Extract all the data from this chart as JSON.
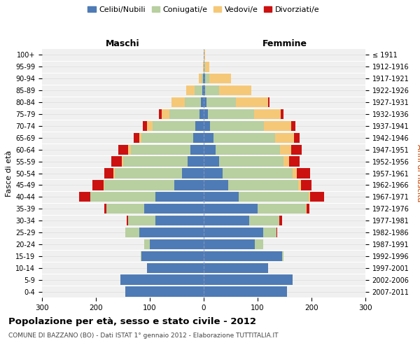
{
  "age_groups": [
    "0-4",
    "5-9",
    "10-14",
    "15-19",
    "20-24",
    "25-29",
    "30-34",
    "35-39",
    "40-44",
    "45-49",
    "50-54",
    "55-59",
    "60-64",
    "65-69",
    "70-74",
    "75-79",
    "80-84",
    "85-89",
    "90-94",
    "95-99",
    "100+"
  ],
  "birth_years": [
    "2007-2011",
    "2002-2006",
    "1997-2001",
    "1992-1996",
    "1987-1991",
    "1982-1986",
    "1977-1981",
    "1972-1976",
    "1967-1971",
    "1962-1966",
    "1957-1961",
    "1952-1956",
    "1947-1951",
    "1942-1946",
    "1937-1941",
    "1932-1936",
    "1927-1931",
    "1922-1926",
    "1917-1921",
    "1912-1916",
    "≤ 1911"
  ],
  "colors": {
    "celibe": "#4e7bb5",
    "coniugato": "#b8cfa0",
    "vedovo": "#f5c878",
    "divorziato": "#cc1111"
  },
  "males": {
    "celibe": [
      145,
      155,
      105,
      115,
      100,
      120,
      90,
      110,
      90,
      55,
      40,
      30,
      25,
      20,
      15,
      8,
      5,
      2,
      1,
      0,
      0
    ],
    "coniugato": [
      0,
      0,
      0,
      2,
      10,
      25,
      50,
      70,
      120,
      130,
      125,
      120,
      110,
      95,
      80,
      55,
      30,
      15,
      3,
      0,
      0
    ],
    "vedovo": [
      0,
      0,
      0,
      0,
      0,
      0,
      0,
      0,
      1,
      1,
      2,
      2,
      5,
      5,
      10,
      15,
      25,
      15,
      5,
      1,
      0
    ],
    "divorziato": [
      0,
      0,
      0,
      0,
      0,
      0,
      3,
      5,
      20,
      20,
      18,
      20,
      18,
      10,
      8,
      5,
      0,
      0,
      0,
      0,
      0
    ]
  },
  "females": {
    "celibe": [
      155,
      165,
      120,
      145,
      95,
      110,
      85,
      100,
      65,
      45,
      35,
      28,
      22,
      18,
      12,
      8,
      5,
      3,
      2,
      0,
      0
    ],
    "coniugato": [
      0,
      0,
      0,
      3,
      15,
      25,
      55,
      90,
      130,
      130,
      130,
      120,
      120,
      115,
      100,
      85,
      55,
      25,
      8,
      2,
      0
    ],
    "vedovo": [
      0,
      0,
      0,
      0,
      0,
      0,
      0,
      1,
      3,
      5,
      8,
      10,
      20,
      35,
      50,
      50,
      60,
      60,
      40,
      8,
      2
    ],
    "divorziato": [
      0,
      0,
      0,
      0,
      0,
      2,
      5,
      5,
      25,
      20,
      25,
      20,
      20,
      10,
      8,
      5,
      2,
      0,
      0,
      0,
      0
    ]
  },
  "xlim": 300,
  "title": "Popolazione per età, sesso e stato civile - 2012",
  "subtitle": "COMUNE DI BAZZANO (BO) - Dati ISTAT 1° gennaio 2012 - Elaborazione TUTTITALIA.IT",
  "xlabel_left": "Maschi",
  "xlabel_right": "Femmine",
  "ylabel_left": "Fasce di età",
  "ylabel_right": "Anni di nascita",
  "legend_labels": [
    "Celibi/Nubili",
    "Coniugati/e",
    "Vedovi/e",
    "Divorziati/e"
  ],
  "background_color": "#ffffff",
  "plot_bg_color": "#f0f0f0",
  "grid_color": "#dddddd"
}
